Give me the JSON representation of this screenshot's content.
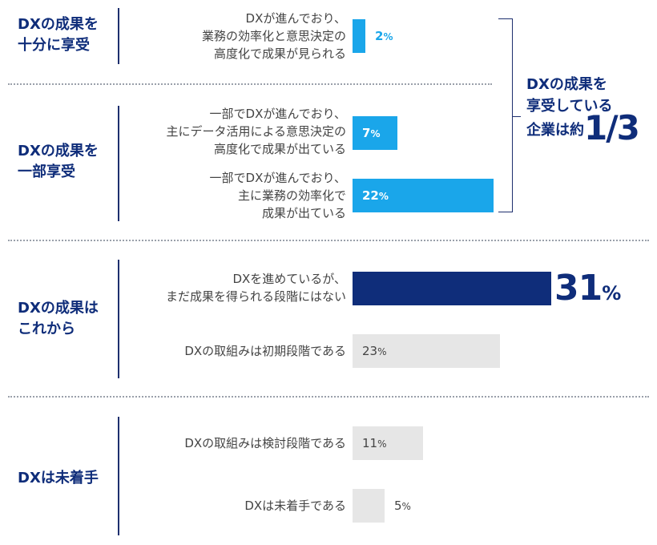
{
  "chart_data": {
    "type": "bar",
    "orientation": "horizontal",
    "unit": "%",
    "groups": [
      {
        "label": "DXの成果を\n十分に享受",
        "rows": [
          0
        ]
      },
      {
        "label": "DXの成果を\n一部享受",
        "rows": [
          1,
          2
        ]
      },
      {
        "label": "DXの成果は\nこれから",
        "rows": [
          3,
          4
        ]
      },
      {
        "label": "DXは未着手",
        "rows": [
          5,
          6
        ]
      }
    ],
    "categories": [
      "DXが進んでおり、\n業務の効率化と意思決定の\n高度化で成果が見られる",
      "一部でDXが進んでおり、\n主にデータ活用による意思決定の\n高度化で成果が出ている",
      "一部でDXが進んでおり、\n主に業務の効率化で\n成果が出ている",
      "DXを進めているが、\nまだ成果を得られる段階にはない",
      "DXの取組みは初期段階である",
      "DXの取組みは検討段階である",
      "DXは未着手である"
    ],
    "values": [
      2,
      7,
      22,
      31,
      23,
      11,
      5
    ],
    "bar_colors": [
      "#1aa6ea",
      "#1aa6ea",
      "#1aa6ea",
      "#0f2d7a",
      "#e6e6e6",
      "#e6e6e6",
      "#e6e6e6"
    ],
    "annotation": {
      "line1": "DXの成果を",
      "line2": "享受している",
      "line3_prefix": "企業は約",
      "line3_big": "1/3"
    }
  }
}
